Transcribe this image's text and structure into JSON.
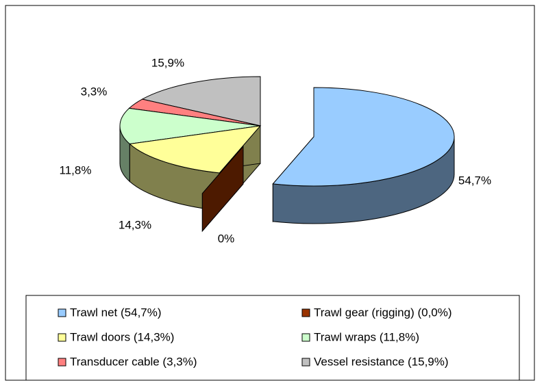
{
  "chart_data": {
    "type": "pie",
    "categories": [
      "Trawl net (54,7%)",
      "Trawl gear (rigging) (0,0%)",
      "Trawl doors (14,3%)",
      "Trawl wraps (11,8%)",
      "Transducer cable (3,3%)",
      "Vessel resistance (15,9%)"
    ],
    "values": [
      54.7,
      0,
      14.3,
      11.8,
      3.3,
      15.9
    ],
    "value_labels": [
      "54,7%",
      "0%",
      "14,3%",
      "11,8%",
      "3,3%",
      "15,9%"
    ],
    "colors": [
      "#99ccff",
      "#993300",
      "#ffff99",
      "#ccffcc",
      "#ff8080",
      "#c0c0c0"
    ],
    "legend": "bottom"
  }
}
